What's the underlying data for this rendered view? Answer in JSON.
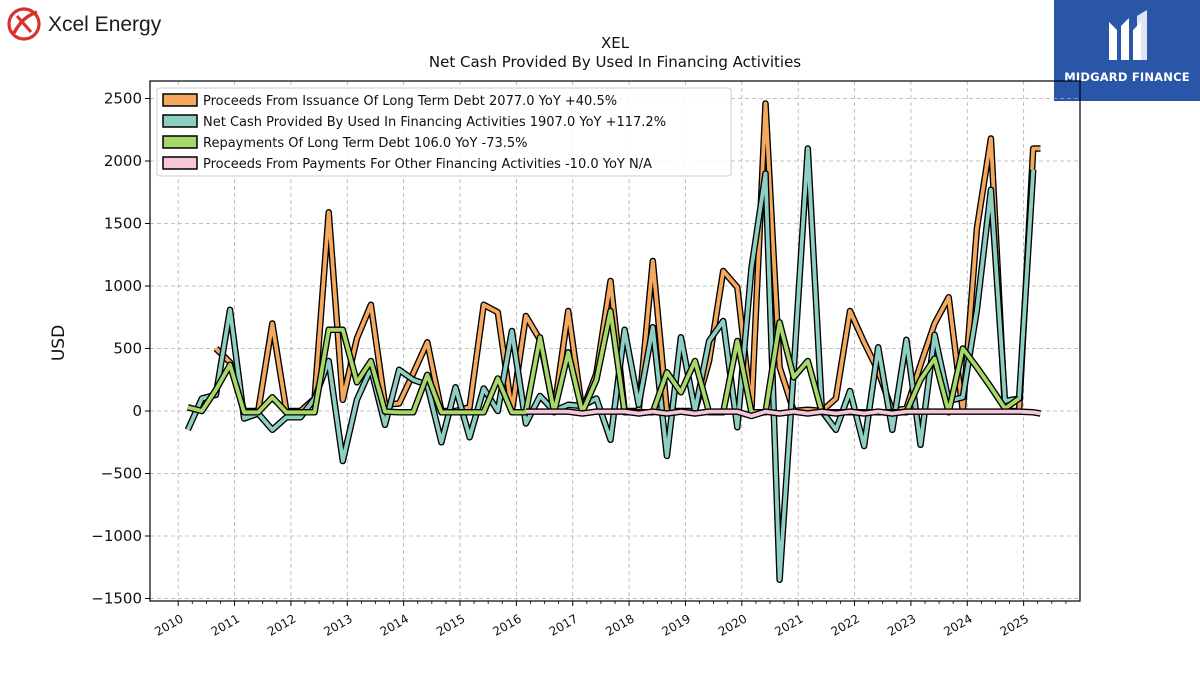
{
  "brand": {
    "left_logo_text": "Xcel Energy",
    "right_logo_text": "MIDGARD FINANCE",
    "right_logo_color": "#2a56a8"
  },
  "chart_data": {
    "type": "line",
    "title": "XEL",
    "subtitle": "Net Cash Provided By Used In Financing Activities",
    "ylabel": "USD",
    "xlabel": "",
    "ylim": [
      -1520,
      2640
    ],
    "xlim": [
      2009.5,
      2026.0
    ],
    "yticks": [
      -1500,
      -1000,
      -500,
      0,
      500,
      1000,
      1500,
      2000,
      2500
    ],
    "xticks": [
      "2010",
      "2011",
      "2012",
      "2013",
      "2014",
      "2015",
      "2016",
      "2017",
      "2018",
      "2019",
      "2020",
      "2021",
      "2022",
      "2023",
      "2024",
      "2025"
    ],
    "grid": true,
    "legend_position": "top-left",
    "series": [
      {
        "name": "Proceeds From Issuance Of Long Term Debt  2077.0 YoY +40.5%",
        "color": "#f4a95e",
        "points": [
          [
            2010.67,
            500
          ],
          [
            2010.92,
            390
          ],
          [
            2011.17,
            0
          ],
          [
            2011.42,
            0
          ],
          [
            2011.67,
            700
          ],
          [
            2011.92,
            0
          ],
          [
            2012.17,
            0
          ],
          [
            2012.42,
            100
          ],
          [
            2012.67,
            1590
          ],
          [
            2012.92,
            90
          ],
          [
            2013.17,
            580
          ],
          [
            2013.42,
            850
          ],
          [
            2013.67,
            50
          ],
          [
            2013.92,
            60
          ],
          [
            2014.17,
            300
          ],
          [
            2014.42,
            550
          ],
          [
            2014.67,
            0
          ],
          [
            2014.92,
            0
          ],
          [
            2015.17,
            30
          ],
          [
            2015.42,
            850
          ],
          [
            2015.67,
            790
          ],
          [
            2015.92,
            0
          ],
          [
            2016.17,
            760
          ],
          [
            2016.42,
            570
          ],
          [
            2016.67,
            0
          ],
          [
            2016.92,
            800
          ],
          [
            2017.17,
            0
          ],
          [
            2017.42,
            300
          ],
          [
            2017.67,
            1040
          ],
          [
            2017.92,
            0
          ],
          [
            2018.17,
            0
          ],
          [
            2018.42,
            1200
          ],
          [
            2018.67,
            0
          ],
          [
            2018.92,
            0
          ],
          [
            2019.17,
            0
          ],
          [
            2019.42,
            400
          ],
          [
            2019.67,
            1120
          ],
          [
            2019.92,
            990
          ],
          [
            2020.17,
            0
          ],
          [
            2020.42,
            2460
          ],
          [
            2020.67,
            350
          ],
          [
            2020.92,
            0
          ],
          [
            2021.17,
            10
          ],
          [
            2021.42,
            0
          ],
          [
            2021.67,
            100
          ],
          [
            2021.92,
            800
          ],
          [
            2022.17,
            550
          ],
          [
            2022.42,
            320
          ],
          [
            2022.67,
            0
          ],
          [
            2022.92,
            20
          ],
          [
            2023.17,
            370
          ],
          [
            2023.42,
            700
          ],
          [
            2023.67,
            910
          ],
          [
            2023.92,
            0
          ],
          [
            2024.17,
            1460
          ],
          [
            2024.42,
            2180
          ],
          [
            2024.67,
            0
          ],
          [
            2024.92,
            0
          ],
          [
            2025.17,
            2100
          ],
          [
            2025.3,
            2100
          ]
        ]
      },
      {
        "name": "Net Cash Provided By Used In Financing Activities  1907.0 YoY +117.2%",
        "color": "#8ecfc3",
        "points": [
          [
            2010.17,
            -150
          ],
          [
            2010.42,
            100
          ],
          [
            2010.67,
            130
          ],
          [
            2010.92,
            810
          ],
          [
            2011.17,
            -60
          ],
          [
            2011.42,
            -20
          ],
          [
            2011.67,
            -150
          ],
          [
            2011.92,
            -50
          ],
          [
            2012.17,
            -50
          ],
          [
            2012.42,
            100
          ],
          [
            2012.67,
            400
          ],
          [
            2012.92,
            -400
          ],
          [
            2013.17,
            90
          ],
          [
            2013.42,
            340
          ],
          [
            2013.67,
            -110
          ],
          [
            2013.92,
            330
          ],
          [
            2014.17,
            250
          ],
          [
            2014.42,
            210
          ],
          [
            2014.67,
            -250
          ],
          [
            2014.92,
            190
          ],
          [
            2015.17,
            -210
          ],
          [
            2015.42,
            180
          ],
          [
            2015.67,
            0
          ],
          [
            2015.92,
            640
          ],
          [
            2016.17,
            -100
          ],
          [
            2016.42,
            120
          ],
          [
            2016.67,
            0
          ],
          [
            2016.92,
            50
          ],
          [
            2017.17,
            40
          ],
          [
            2017.42,
            100
          ],
          [
            2017.67,
            -230
          ],
          [
            2017.92,
            650
          ],
          [
            2018.17,
            50
          ],
          [
            2018.42,
            670
          ],
          [
            2018.67,
            -360
          ],
          [
            2018.92,
            590
          ],
          [
            2019.17,
            0
          ],
          [
            2019.42,
            560
          ],
          [
            2019.67,
            720
          ],
          [
            2019.92,
            -130
          ],
          [
            2020.17,
            1140
          ],
          [
            2020.42,
            1900
          ],
          [
            2020.67,
            -1350
          ],
          [
            2020.92,
            330
          ],
          [
            2021.17,
            2100
          ],
          [
            2021.42,
            0
          ],
          [
            2021.67,
            -150
          ],
          [
            2021.92,
            160
          ],
          [
            2022.17,
            -280
          ],
          [
            2022.42,
            510
          ],
          [
            2022.67,
            -150
          ],
          [
            2022.92,
            570
          ],
          [
            2023.17,
            -270
          ],
          [
            2023.42,
            610
          ],
          [
            2023.67,
            80
          ],
          [
            2023.92,
            110
          ],
          [
            2024.17,
            810
          ],
          [
            2024.42,
            1770
          ],
          [
            2024.67,
            80
          ],
          [
            2024.92,
            100
          ],
          [
            2025.17,
            1930
          ]
        ]
      },
      {
        "name": "Repayments Of Long Term Debt  106.0 YoY -73.5%",
        "color": "#a6d86a",
        "points": [
          [
            2010.17,
            30
          ],
          [
            2010.42,
            0
          ],
          [
            2010.67,
            170
          ],
          [
            2010.92,
            370
          ],
          [
            2011.17,
            -10
          ],
          [
            2011.42,
            -10
          ],
          [
            2011.67,
            110
          ],
          [
            2011.92,
            -10
          ],
          [
            2012.17,
            -10
          ],
          [
            2012.42,
            -10
          ],
          [
            2012.67,
            650
          ],
          [
            2012.92,
            650
          ],
          [
            2013.17,
            230
          ],
          [
            2013.42,
            400
          ],
          [
            2013.67,
            -5
          ],
          [
            2013.92,
            -10
          ],
          [
            2014.17,
            -10
          ],
          [
            2014.42,
            290
          ],
          [
            2014.67,
            -10
          ],
          [
            2014.92,
            -10
          ],
          [
            2015.17,
            -10
          ],
          [
            2015.42,
            -10
          ],
          [
            2015.67,
            260
          ],
          [
            2015.92,
            -10
          ],
          [
            2016.17,
            -10
          ],
          [
            2016.42,
            590
          ],
          [
            2016.67,
            -10
          ],
          [
            2016.92,
            470
          ],
          [
            2017.17,
            -10
          ],
          [
            2017.42,
            250
          ],
          [
            2017.67,
            800
          ],
          [
            2017.92,
            -10
          ],
          [
            2018.17,
            -10
          ],
          [
            2018.42,
            -10
          ],
          [
            2018.67,
            310
          ],
          [
            2018.92,
            150
          ],
          [
            2019.17,
            400
          ],
          [
            2019.42,
            -10
          ],
          [
            2019.67,
            -10
          ],
          [
            2019.92,
            560
          ],
          [
            2020.17,
            -10
          ],
          [
            2020.42,
            -10
          ],
          [
            2020.67,
            710
          ],
          [
            2020.92,
            270
          ],
          [
            2021.17,
            400
          ],
          [
            2021.42,
            -10
          ],
          [
            2021.67,
            -10
          ],
          [
            2021.92,
            -10
          ],
          [
            2022.17,
            -10
          ],
          [
            2022.42,
            -10
          ],
          [
            2022.67,
            -10
          ],
          [
            2022.92,
            -10
          ],
          [
            2023.17,
            250
          ],
          [
            2023.42,
            420
          ],
          [
            2023.67,
            -10
          ],
          [
            2023.92,
            500
          ],
          [
            2024.17,
            350
          ],
          [
            2024.42,
            190
          ],
          [
            2024.67,
            20
          ],
          [
            2024.92,
            100
          ]
        ]
      },
      {
        "name": "Proceeds From Payments For Other Financing Activities  -10.0 YoY N/A",
        "color": "#f7c6da",
        "points": [
          [
            2016.17,
            -5
          ],
          [
            2016.42,
            -5
          ],
          [
            2016.67,
            -5
          ],
          [
            2016.92,
            -5
          ],
          [
            2017.17,
            -20
          ],
          [
            2017.42,
            -5
          ],
          [
            2017.67,
            -5
          ],
          [
            2017.92,
            -5
          ],
          [
            2018.17,
            -20
          ],
          [
            2018.42,
            -5
          ],
          [
            2018.67,
            -20
          ],
          [
            2018.92,
            -5
          ],
          [
            2019.17,
            -20
          ],
          [
            2019.42,
            -5
          ],
          [
            2019.67,
            -5
          ],
          [
            2019.92,
            -5
          ],
          [
            2020.17,
            -40
          ],
          [
            2020.42,
            -5
          ],
          [
            2020.67,
            -20
          ],
          [
            2020.92,
            -5
          ],
          [
            2021.17,
            -20
          ],
          [
            2021.42,
            -5
          ],
          [
            2021.67,
            -20
          ],
          [
            2021.92,
            -5
          ],
          [
            2022.17,
            -20
          ],
          [
            2022.42,
            -5
          ],
          [
            2022.67,
            -20
          ],
          [
            2022.92,
            -5
          ],
          [
            2023.17,
            -5
          ],
          [
            2023.42,
            -5
          ],
          [
            2023.67,
            -5
          ],
          [
            2023.92,
            -5
          ],
          [
            2024.17,
            -5
          ],
          [
            2024.42,
            -5
          ],
          [
            2024.67,
            -5
          ],
          [
            2024.92,
            -5
          ],
          [
            2025.17,
            -10
          ],
          [
            2025.3,
            -20
          ]
        ]
      }
    ]
  }
}
